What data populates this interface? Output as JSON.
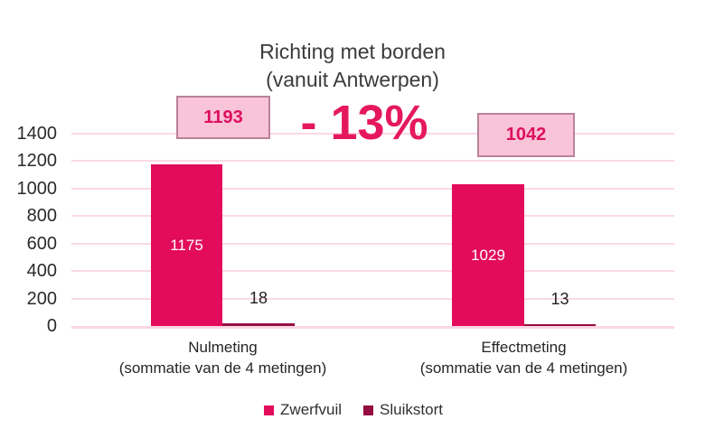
{
  "title": {
    "line1": "Richting met borden",
    "line2": "(vanuit Antwerpen)"
  },
  "annotations": {
    "nulmeting_total": "1193",
    "effectmeting_total": "1042",
    "delta_label": "- 13%"
  },
  "colors": {
    "zwerfvuil": "#e30b5c",
    "sluikstort": "#950c42",
    "gridline": "#fbd9e6",
    "baseline": "#fcd5e3",
    "sum_box_fill": "#f9c3d8",
    "sum_box_border": "#b9839a",
    "accent_text": "#dd0f5e",
    "delta_text": "#e5185f",
    "title_text": "#3b3b3b"
  },
  "chart_data": {
    "type": "bar",
    "title": "Richting met borden (vanuit Antwerpen)",
    "categories": [
      [
        "Nulmeting",
        "(sommatie van de 4 metingen)"
      ],
      [
        "Effectmeting",
        "(sommatie van de 4 metingen)"
      ]
    ],
    "series": [
      {
        "name": "Zwerfvuil",
        "values": [
          1175,
          1029
        ],
        "color": "#e30b5c"
      },
      {
        "name": "Sluikstort",
        "values": [
          18,
          13
        ],
        "color": "#950c42"
      }
    ],
    "group_totals": [
      "1193",
      "1042"
    ],
    "delta_percent": "- 13%",
    "y_ticks": [
      0,
      200,
      400,
      600,
      800,
      1000,
      1200,
      1400
    ],
    "ylim": [
      0,
      1400
    ],
    "grid": true,
    "legend_position": "bottom",
    "xlabel": "",
    "ylabel": ""
  }
}
